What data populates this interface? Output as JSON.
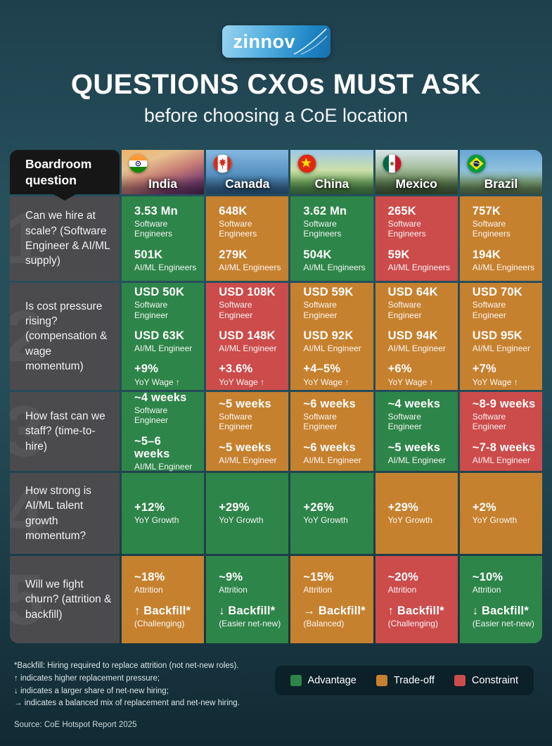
{
  "header": {
    "logo_text": "zinnov",
    "title": "QUESTIONS CXOs MUST ASK",
    "subtitle": "before choosing a CoE location"
  },
  "chart_data": {
    "type": "table",
    "title": "QUESTIONS CXOs MUST ASK before choosing a CoE location",
    "corner_label": "Boardroom question",
    "countries": [
      {
        "key": "india",
        "name": "India"
      },
      {
        "key": "canada",
        "name": "Canada"
      },
      {
        "key": "china",
        "name": "China"
      },
      {
        "key": "mexico",
        "name": "Mexico"
      },
      {
        "key": "brazil",
        "name": "Brazil"
      }
    ],
    "rows": [
      {
        "num": "1",
        "question": "Can we hire at scale? (Software Engineer & AI/ML supply)",
        "cells": [
          {
            "status": "advantage",
            "items": [
              {
                "value": "3.53 Mn",
                "label": "Software Engineers"
              },
              {
                "value": "501K",
                "label": "AI/ML Engineers"
              }
            ]
          },
          {
            "status": "tradeoff",
            "items": [
              {
                "value": "648K",
                "label": "Software Engineers"
              },
              {
                "value": "279K",
                "label": "AI/ML Engineers"
              }
            ]
          },
          {
            "status": "advantage",
            "items": [
              {
                "value": "3.62 Mn",
                "label": "Software Engineers"
              },
              {
                "value": "504K",
                "label": "AI/ML Engineers"
              }
            ]
          },
          {
            "status": "constraint",
            "items": [
              {
                "value": "265K",
                "label": "Software Engineers"
              },
              {
                "value": "59K",
                "label": "AI/ML Engineers"
              }
            ]
          },
          {
            "status": "tradeoff",
            "items": [
              {
                "value": "757K",
                "label": "Software Engineers"
              },
              {
                "value": "194K",
                "label": "AI/ML Engineers"
              }
            ]
          }
        ]
      },
      {
        "num": "2",
        "question": "Is cost pressure rising? (compensation & wage momentum)",
        "cells": [
          {
            "status": "advantage",
            "items": [
              {
                "value": "USD 50K",
                "label": "Software Engineer"
              },
              {
                "value": "USD 63K",
                "label": "AI/ML Engineer"
              },
              {
                "value": "+9%",
                "label": "YoY Wage ↑"
              }
            ]
          },
          {
            "status": "constraint",
            "items": [
              {
                "value": "USD 108K",
                "label": "Software Engineer"
              },
              {
                "value": "USD 148K",
                "label": "AI/ML Engineer"
              },
              {
                "value": "+3.6%",
                "label": "YoY Wage ↑"
              }
            ]
          },
          {
            "status": "tradeoff",
            "items": [
              {
                "value": "USD 59K",
                "label": "Software Engineer"
              },
              {
                "value": "USD 92K",
                "label": "AI/ML Engineer"
              },
              {
                "value": "+4–5%",
                "label": "YoY Wage ↑"
              }
            ]
          },
          {
            "status": "tradeoff",
            "items": [
              {
                "value": "USD 64K",
                "label": "Software Engineer"
              },
              {
                "value": "USD 94K",
                "label": "AI/ML Engineer"
              },
              {
                "value": "+6%",
                "label": "YoY Wage ↑"
              }
            ]
          },
          {
            "status": "tradeoff",
            "items": [
              {
                "value": "USD 70K",
                "label": "Software Engineer"
              },
              {
                "value": "USD 95K",
                "label": "AI/ML Engineer"
              },
              {
                "value": "+7%",
                "label": "YoY Wage ↑"
              }
            ]
          }
        ]
      },
      {
        "num": "3",
        "question": "How fast can we staff? (time-to-hire)",
        "cells": [
          {
            "status": "advantage",
            "items": [
              {
                "value": "~4 weeks",
                "label": "Software Engineer"
              },
              {
                "value": "~5–6 weeks",
                "label": "AI/ML Engineer"
              }
            ]
          },
          {
            "status": "tradeoff",
            "items": [
              {
                "value": "~5 weeks",
                "label": "Software Engineer"
              },
              {
                "value": "~5 weeks",
                "label": "AI/ML Engineer"
              }
            ]
          },
          {
            "status": "tradeoff",
            "items": [
              {
                "value": "~6 weeks",
                "label": "Software Engineer"
              },
              {
                "value": "~6 weeks",
                "label": "AI/ML Engineer"
              }
            ]
          },
          {
            "status": "advantage",
            "items": [
              {
                "value": "~4 weeks",
                "label": "Software Engineer"
              },
              {
                "value": "~5 weeks",
                "label": "AI/ML Engineer"
              }
            ]
          },
          {
            "status": "constraint",
            "items": [
              {
                "value": "~8-9 weeks",
                "label": "Software Engineer"
              },
              {
                "value": "~7-8 weeks",
                "label": "AI/ML Engineer"
              }
            ]
          }
        ]
      },
      {
        "num": "4",
        "question": "How strong is AI/ML talent growth momentum?",
        "cells": [
          {
            "status": "advantage",
            "items": [
              {
                "value": "+12%",
                "label": "YoY Growth"
              }
            ]
          },
          {
            "status": "advantage",
            "items": [
              {
                "value": "+29%",
                "label": "YoY Growth"
              }
            ]
          },
          {
            "status": "advantage",
            "items": [
              {
                "value": "+26%",
                "label": "YoY Growth"
              }
            ]
          },
          {
            "status": "tradeoff",
            "items": [
              {
                "value": "+29%",
                "label": "YoY Growth"
              }
            ]
          },
          {
            "status": "tradeoff",
            "items": [
              {
                "value": "+2%",
                "label": "YoY Growth"
              }
            ]
          }
        ]
      },
      {
        "num": "5",
        "question": "Will we fight churn? (attrition & backfill)",
        "cells": [
          {
            "status": "tradeoff",
            "items": [
              {
                "value": "~18%",
                "label": "Attrition"
              },
              {
                "value": "↑ Backfill*",
                "label": "(Challenging)"
              }
            ]
          },
          {
            "status": "advantage",
            "items": [
              {
                "value": "~9%",
                "label": "Attrition"
              },
              {
                "value": "↓ Backfill*",
                "label": "(Easier net-new)"
              }
            ]
          },
          {
            "status": "tradeoff",
            "items": [
              {
                "value": "~15%",
                "label": "Attrition"
              },
              {
                "value": "→ Backfill*",
                "label": "(Balanced)"
              }
            ]
          },
          {
            "status": "constraint",
            "items": [
              {
                "value": "~20%",
                "label": "Attrition"
              },
              {
                "value": "↑ Backfill*",
                "label": "(Challenging)"
              }
            ]
          },
          {
            "status": "advantage",
            "items": [
              {
                "value": "~10%",
                "label": "Attrition"
              },
              {
                "value": "↓ Backfill*",
                "label": "(Easier net-new)"
              }
            ]
          }
        ]
      }
    ]
  },
  "legend": {
    "items": [
      {
        "key": "advantage",
        "label": "Advantage"
      },
      {
        "key": "tradeoff",
        "label": "Trade-off"
      },
      {
        "key": "constraint",
        "label": "Constraint"
      }
    ]
  },
  "footnotes": [
    "*Backfill: Hiring required to replace attrition (not net-new roles).",
    "↑ indicates higher replacement pressure;",
    "↓ indicates a larger share of net-new hiring;",
    "→ indicates a balanced mix of replacement and net-new hiring."
  ],
  "source": "Source: CoE Hotspot Report 2025",
  "colors": {
    "advantage": "#2E8549",
    "tradeoff": "#C6812F",
    "constraint": "#CC4B4B",
    "question_bg": "#4B4B4D",
    "corner_bg": "#161616",
    "logo_blue": "#2D9CDB"
  }
}
